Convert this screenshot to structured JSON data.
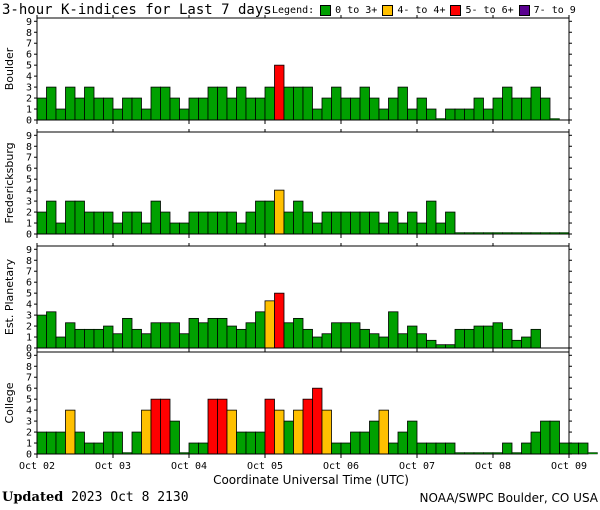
{
  "title": "3-hour K-indices for Last 7 days",
  "legend": {
    "label": "Legend:",
    "items": [
      {
        "label": "0 to 3+",
        "color": "#00a000"
      },
      {
        "label": "4- to 4+",
        "color": "#ffc000"
      },
      {
        "label": "5- to 6+",
        "color": "#ff0000"
      },
      {
        "label": "7- to 9",
        "color": "#5a0090"
      }
    ]
  },
  "footer": {
    "updated_label": "Updated",
    "updated_value": "2023 Oct  8 2130",
    "credit": "NOAA/SWPC Boulder, CO USA"
  },
  "chart_data": {
    "type": "bar",
    "xlabel": "Coordinate Universal Time (UTC)",
    "x_ticks": [
      "Oct 02",
      "Oct 03",
      "Oct 04",
      "Oct 05",
      "Oct 06",
      "Oct 07",
      "Oct 08",
      "Oct 09"
    ],
    "y_ticks": [
      "0",
      "1",
      "2",
      "3",
      "4",
      "5",
      "6",
      "7",
      "8",
      "9"
    ],
    "ylim": [
      0,
      9
    ],
    "bins_per_day": 8,
    "grid": false,
    "colors": {
      "quiet": "#00a000",
      "active": "#ffc000",
      "storm": "#ff0000",
      "severe": "#5a0090"
    },
    "panels": [
      {
        "name": "Boulder",
        "values": [
          2,
          3,
          1,
          3,
          2,
          3,
          2,
          2,
          1,
          2,
          2,
          1,
          3,
          3,
          2,
          1,
          2,
          2,
          3,
          3,
          2,
          3,
          2,
          2,
          3,
          5,
          3,
          3,
          3,
          1,
          2,
          3,
          2,
          2,
          3,
          2,
          1,
          2,
          3,
          1,
          2,
          1,
          0,
          1,
          1,
          1,
          2,
          1,
          2,
          3,
          2,
          2,
          3,
          2,
          0
        ]
      },
      {
        "name": "Fredericksburg",
        "values": [
          2,
          3,
          1,
          3,
          3,
          2,
          2,
          2,
          1,
          2,
          2,
          1,
          3,
          2,
          1,
          1,
          2,
          2,
          2,
          2,
          2,
          1,
          2,
          3,
          3,
          4,
          2,
          3,
          2,
          1,
          2,
          2,
          2,
          2,
          2,
          2,
          1,
          2,
          1,
          2,
          1,
          3,
          1,
          2,
          0,
          0,
          0,
          0,
          0,
          0,
          0,
          0,
          0,
          0,
          0,
          0
        ]
      },
      {
        "name": "Est. Planetary",
        "values": [
          3,
          3.3,
          1,
          2.3,
          1.7,
          1.7,
          1.7,
          2,
          1.3,
          2.7,
          1.7,
          1.3,
          2.3,
          2.3,
          2.3,
          1.3,
          2.7,
          2.3,
          2.7,
          2.7,
          2,
          1.7,
          2.3,
          3.3,
          4.3,
          5,
          2.3,
          2.7,
          1.7,
          1,
          1.3,
          2.3,
          2.3,
          2.3,
          1.7,
          1.3,
          1,
          3.3,
          1.3,
          2,
          1.3,
          0.7,
          0.3,
          0.3,
          1.7,
          1.7,
          2,
          2,
          2.3,
          1.7,
          0.7,
          1,
          1.7
        ]
      },
      {
        "name": "College",
        "values": [
          2,
          2,
          2,
          4,
          2,
          1,
          1,
          2,
          2,
          0,
          2,
          4,
          5,
          5,
          3,
          0,
          1,
          1,
          5,
          5,
          4,
          2,
          2,
          2,
          5,
          4,
          3,
          4,
          5,
          6,
          4,
          1,
          1,
          2,
          2,
          3,
          4,
          1,
          2,
          3,
          1,
          1,
          1,
          1,
          0,
          0,
          0,
          0,
          0,
          1,
          0,
          1,
          2,
          3,
          3,
          1,
          1,
          1,
          0
        ]
      }
    ]
  }
}
